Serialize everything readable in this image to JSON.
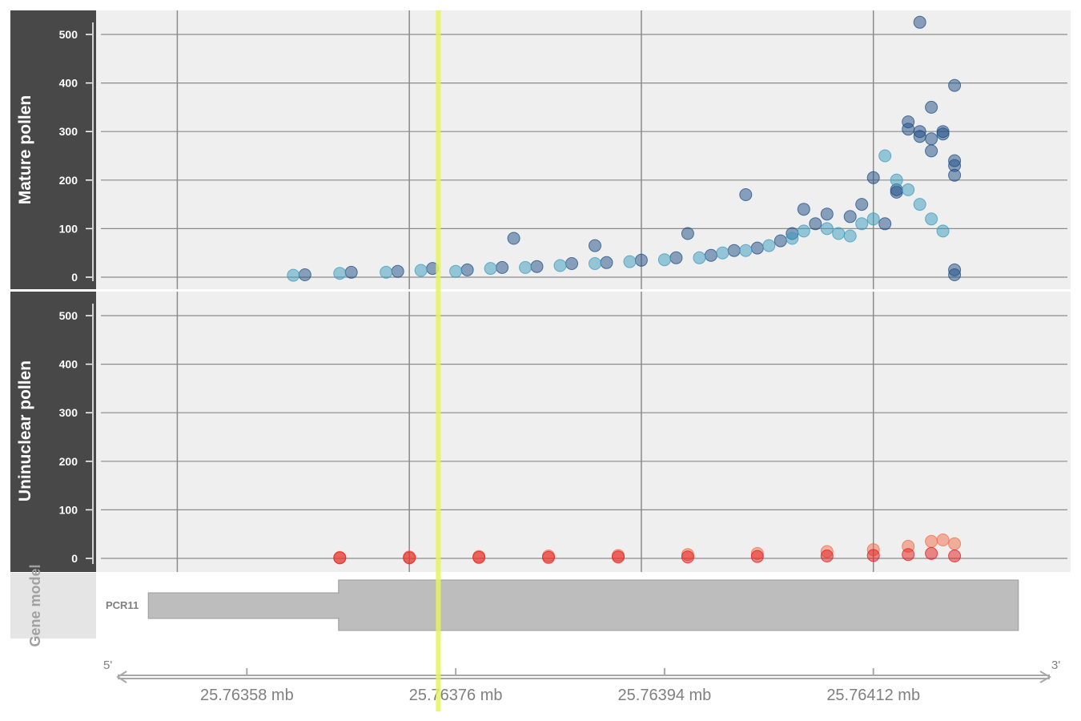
{
  "chart_data": {
    "type": "scatter",
    "x_unit": "mb",
    "xlim": [
      25.76345,
      25.76429
    ],
    "x_ticks": [
      25.76358,
      25.76376,
      25.76394,
      25.76412
    ],
    "x_tick_labels": [
      "25.76358 mb",
      "25.76376 mb",
      "25.76394 mb",
      "25.76412 mb"
    ],
    "x_gridlines": [
      25.76352,
      25.76372,
      25.76392,
      25.76412,
      25.76432
    ],
    "highlight_x": 25.763745,
    "highlight_color": "#e6f55a",
    "ylim": [
      0,
      520
    ],
    "y_ticks": [
      0,
      100,
      200,
      300,
      400,
      500
    ],
    "y_tick_labels": [
      "0",
      "100",
      "200",
      "300",
      "400",
      "500"
    ],
    "grid": true,
    "panels": [
      {
        "title": "Mature pollen",
        "series": [
          {
            "color": "#1f4e85",
            "x": [
              25.76363,
              25.76367,
              25.76371,
              25.76374,
              25.76377,
              25.7638,
              25.76383,
              25.76386,
              25.76389,
              25.76392,
              25.76395,
              25.76398,
              25.764,
              25.76402,
              25.76404,
              25.76405,
              25.76407,
              25.76408,
              25.7641,
              25.76411,
              25.76412,
              25.76413,
              25.76414,
              25.76414,
              25.76415,
              25.76415,
              25.76416,
              25.76416,
              25.76417,
              25.76417,
              25.76418,
              25.76418,
              25.76419,
              25.76419,
              25.76419,
              25.76381,
              25.76388,
              25.76396,
              25.76401,
              25.76406
            ],
            "y": [
              5,
              10,
              12,
              18,
              15,
              20,
              22,
              28,
              30,
              35,
              40,
              45,
              55,
              60,
              75,
              90,
              110,
              130,
              125,
              150,
              205,
              110,
              180,
              175,
              320,
              305,
              300,
              290,
              285,
              260,
              300,
              295,
              240,
              230,
              210,
              80,
              65,
              90,
              170,
              140
            ]
          },
          {
            "color": "#3a9bbf",
            "x": [
              25.76362,
              25.76366,
              25.7637,
              25.76373,
              25.76376,
              25.76379,
              25.76382,
              25.76385,
              25.76388,
              25.76391,
              25.76394,
              25.76397,
              25.76399,
              25.76401,
              25.76403,
              25.76405,
              25.76406,
              25.76408,
              25.76409,
              25.7641,
              25.76411,
              25.76412,
              25.76413,
              25.76414,
              25.76415,
              25.76416,
              25.76417,
              25.76418
            ],
            "y": [
              4,
              8,
              10,
              14,
              12,
              18,
              20,
              24,
              28,
              32,
              36,
              40,
              50,
              55,
              65,
              80,
              95,
              100,
              90,
              85,
              110,
              120,
              250,
              200,
              180,
              150,
              120,
              95
            ]
          },
          {
            "color": "#1f4e85",
            "x": [
              25.76416,
              25.76417,
              25.76419,
              25.76419,
              25.76419
            ],
            "y": [
              525,
              350,
              395,
              15,
              5
            ]
          }
        ]
      },
      {
        "title": "Uninuclear pollen",
        "series": [
          {
            "color": "#f26b4a",
            "x": [
              25.76366,
              25.76372,
              25.76378,
              25.76384,
              25.7639,
              25.76396,
              25.76402,
              25.76408,
              25.76412,
              25.76415,
              25.76417,
              25.76418,
              25.76419
            ],
            "y": [
              2,
              3,
              4,
              5,
              6,
              8,
              10,
              14,
              18,
              25,
              35,
              38,
              30
            ]
          },
          {
            "color": "#e3191b",
            "x": [
              25.76366,
              25.76372,
              25.76378,
              25.76384,
              25.7639,
              25.76396,
              25.76402,
              25.76408,
              25.76412,
              25.76415,
              25.76417,
              25.76419
            ],
            "y": [
              1,
              1,
              2,
              2,
              3,
              3,
              4,
              5,
              6,
              8,
              10,
              5
            ]
          }
        ]
      }
    ],
    "gene_model": {
      "title": "Gene model",
      "gene": "PCR11",
      "start": 25.763495,
      "cds_start": 25.763659,
      "end": 25.764245,
      "strand_5": "5'",
      "strand_3": "3'"
    }
  }
}
